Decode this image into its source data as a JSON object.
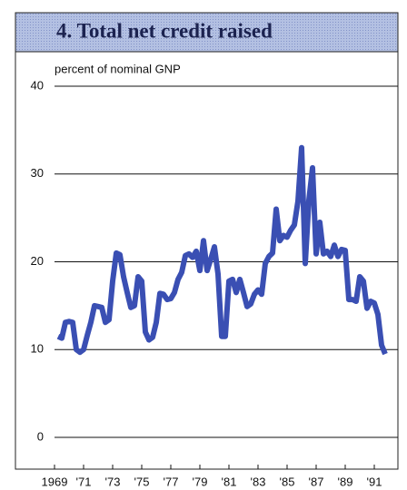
{
  "chart_data": {
    "type": "line",
    "title": "4. Total net credit raised",
    "y_axis_label": "percent of nominal GNP",
    "x": [
      1969.25,
      1969.5,
      1969.75,
      1970,
      1970.25,
      1970.5,
      1970.75,
      1971,
      1971.25,
      1971.5,
      1971.75,
      1972,
      1972.25,
      1972.5,
      1972.75,
      1973,
      1973.25,
      1973.5,
      1973.75,
      1974,
      1974.25,
      1974.5,
      1974.75,
      1975,
      1975.25,
      1975.5,
      1975.75,
      1976,
      1976.25,
      1976.5,
      1976.75,
      1977,
      1977.25,
      1977.5,
      1977.75,
      1978,
      1978.25,
      1978.5,
      1978.75,
      1979,
      1979.25,
      1979.5,
      1979.75,
      1980,
      1980.25,
      1980.5,
      1980.75,
      1981,
      1981.25,
      1981.5,
      1981.75,
      1982,
      1982.25,
      1982.5,
      1982.75,
      1983,
      1983.25,
      1983.5,
      1983.75,
      1984,
      1984.25,
      1984.5,
      1984.75,
      1985,
      1985.25,
      1985.5,
      1985.75,
      1986,
      1986.25,
      1986.5,
      1986.75,
      1987,
      1987.25,
      1987.5,
      1987.75,
      1988,
      1988.25,
      1988.5,
      1988.75,
      1989,
      1989.25,
      1989.5,
      1989.75,
      1990,
      1990.25,
      1990.5,
      1990.75,
      1991,
      1991.25,
      1991.5,
      1991.75
    ],
    "series": [
      {
        "color": "#3a4fb3",
        "values": [
          11.5,
          11.3,
          13.1,
          13.2,
          13.1,
          10.0,
          9.7,
          10.0,
          11.6,
          13.1,
          15.0,
          14.9,
          14.8,
          13.1,
          13.4,
          17.8,
          21.0,
          20.8,
          18.3,
          16.5,
          14.8,
          15.0,
          18.3,
          17.8,
          12.0,
          11.1,
          11.4,
          13.1,
          16.4,
          16.3,
          15.7,
          15.8,
          16.5,
          18.0,
          18.8,
          20.7,
          20.9,
          20.5,
          21.2,
          19.0,
          22.4,
          19.0,
          20.3,
          21.7,
          18.6,
          11.5,
          11.5,
          17.8,
          18.0,
          16.5,
          18.0,
          16.5,
          14.9,
          15.2,
          16.3,
          16.8,
          16.3,
          19.8,
          20.6,
          21.0,
          26.0,
          22.4,
          23.0,
          22.8,
          23.6,
          24.2,
          26.9,
          33.0,
          19.8,
          27.0,
          30.7,
          20.9,
          24.5,
          20.9,
          21.2,
          20.6,
          21.9,
          20.6,
          21.4,
          21.3,
          15.7,
          15.7,
          15.5,
          18.3,
          17.8,
          14.7,
          15.5,
          15.3,
          14.0,
          10.5,
          9.5
        ]
      }
    ],
    "xlim": [
      1969,
      1992.625
    ],
    "xticks": [
      {
        "value": 1969,
        "label": "1969"
      },
      {
        "value": 1971,
        "label": "'71"
      },
      {
        "value": 1973,
        "label": "'73"
      },
      {
        "value": 1975,
        "label": "'75"
      },
      {
        "value": 1977,
        "label": "'77"
      },
      {
        "value": 1979,
        "label": "'79"
      },
      {
        "value": 1981,
        "label": "'81"
      },
      {
        "value": 1983,
        "label": "'83"
      },
      {
        "value": 1985,
        "label": "'85"
      },
      {
        "value": 1987,
        "label": "'87"
      },
      {
        "value": 1989,
        "label": "'89"
      },
      {
        "value": 1991,
        "label": "'91"
      }
    ],
    "ylim": [
      0,
      40
    ],
    "yticks": [
      0,
      10,
      20,
      30,
      40
    ],
    "grid": true
  }
}
